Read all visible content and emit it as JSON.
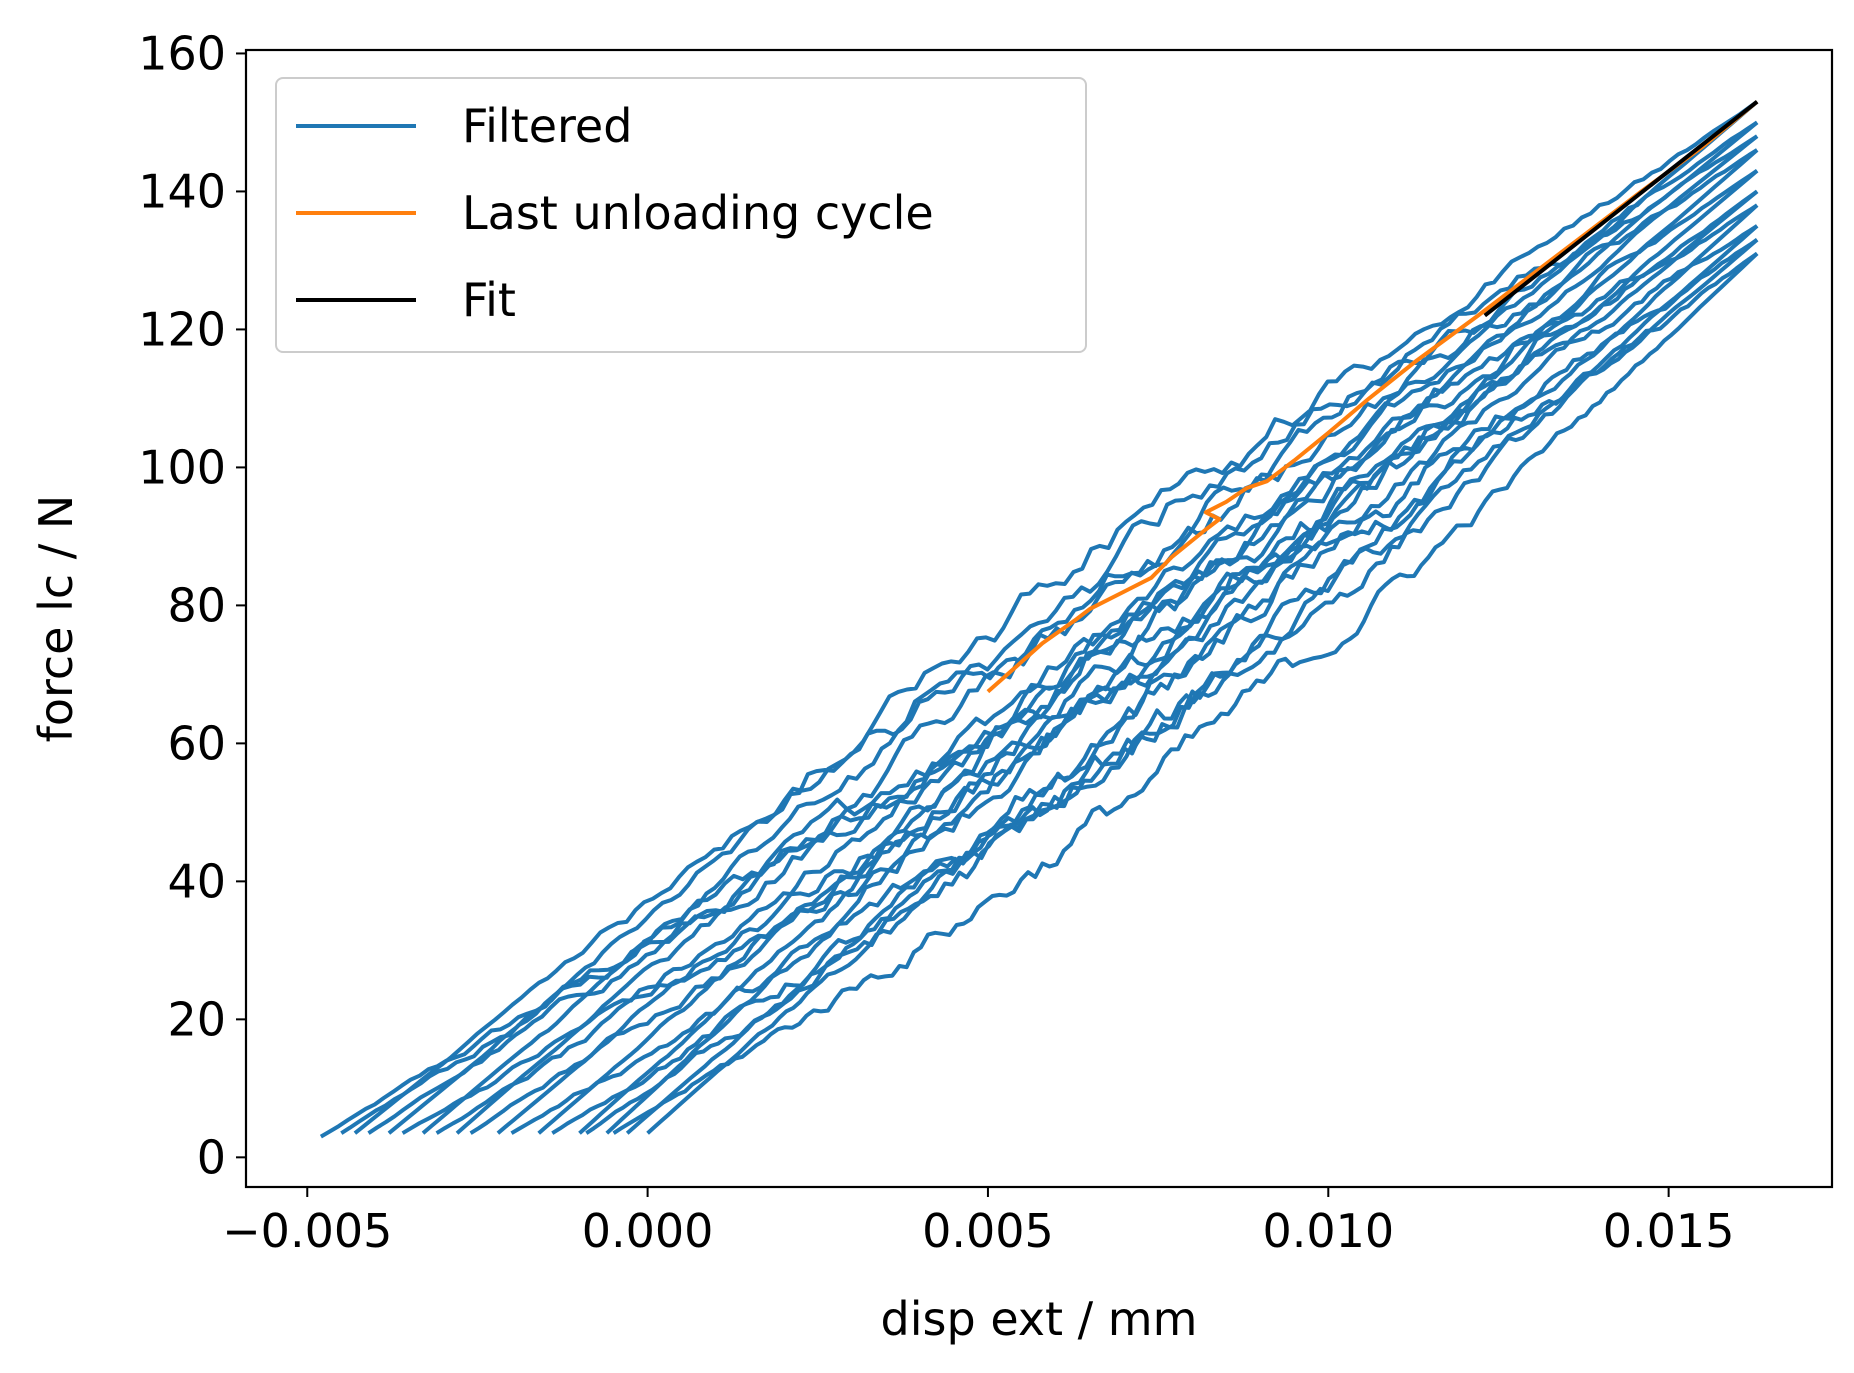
{
  "chart_data": {
    "type": "line",
    "title": "",
    "xlabel": "disp ext / mm",
    "ylabel": "force lc / N",
    "xlim": [
      -0.0059,
      0.0174
    ],
    "ylim": [
      -4.3,
      160.5
    ],
    "xticks": [
      -0.005,
      0.0,
      0.005,
      0.01,
      0.015
    ],
    "xtick_labels": [
      "−0.005",
      "0.000",
      "0.005",
      "0.010",
      "0.015"
    ],
    "yticks": [
      0,
      20,
      40,
      60,
      80,
      100,
      120,
      140,
      160
    ],
    "ytick_labels": [
      "0",
      "20",
      "40",
      "60",
      "80",
      "100",
      "120",
      "140",
      "160"
    ],
    "grid": false,
    "legend_position": "upper-left",
    "colors": {
      "filtered": "#1f77b4",
      "unloading": "#ff7f0e",
      "fit": "#000000"
    },
    "series": [
      {
        "name": "Filtered",
        "color": "#1f77b4",
        "cycles": [
          {
            "start": [
              -0.0048,
              3
            ],
            "peak": [
              0.0163,
              153
            ],
            "end": [
              -0.0043,
              3.5
            ]
          },
          {
            "start": [
              -0.0045,
              3.5
            ],
            "peak": [
              0.0163,
              150
            ],
            "end": [
              -0.0038,
              3.5
            ]
          },
          {
            "start": [
              -0.0041,
              3.5
            ],
            "peak": [
              0.0163,
              148
            ],
            "end": [
              -0.0033,
              3.5
            ]
          },
          {
            "start": [
              -0.0036,
              3.5
            ],
            "peak": [
              0.0163,
              146
            ],
            "end": [
              -0.0028,
              3.5
            ]
          },
          {
            "start": [
              -0.0031,
              3.5
            ],
            "peak": [
              0.0163,
              143
            ],
            "end": [
              -0.0022,
              3.5
            ]
          },
          {
            "start": [
              -0.0026,
              3.5
            ],
            "peak": [
              0.0163,
              140
            ],
            "end": [
              -0.0016,
              3.5
            ]
          },
          {
            "start": [
              -0.002,
              3.5
            ],
            "peak": [
              0.0163,
              138
            ],
            "end": [
              -0.001,
              3.5
            ]
          },
          {
            "start": [
              -0.0014,
              3.5
            ],
            "peak": [
              0.0163,
              135
            ],
            "end": [
              -0.0006,
              3.5
            ]
          },
          {
            "start": [
              -0.0009,
              3.5
            ],
            "peak": [
              0.0163,
              133
            ],
            "end": [
              -0.0003,
              3.5
            ]
          },
          {
            "start": [
              -0.0005,
              3.5
            ],
            "peak": [
              0.0163,
              131
            ],
            "end": [
              0.0,
              3.5
            ]
          }
        ]
      },
      {
        "name": "Last unloading cycle",
        "color": "#ff7f0e",
        "x": [
          0.0163,
          0.0155,
          0.0146,
          0.0138,
          0.013,
          0.0122,
          0.0113,
          0.0106,
          0.01,
          0.0095,
          0.0091,
          0.0088,
          0.0085,
          0.0082,
          0.0084,
          0.0082,
          0.0077,
          0.0074,
          0.007,
          0.0065,
          0.0063,
          0.0058,
          0.0054,
          0.005
        ],
        "y": [
          153,
          146.5,
          140,
          134,
          128,
          122,
          115.5,
          110,
          105,
          101,
          98,
          97,
          95,
          93.5,
          92.5,
          91,
          87,
          84,
          82,
          79.5,
          78,
          74.5,
          71,
          67.5
        ]
      },
      {
        "name": "Fit",
        "color": "#000000",
        "x": [
          0.0123,
          0.0163
        ],
        "y": [
          122,
          153
        ]
      }
    ]
  }
}
